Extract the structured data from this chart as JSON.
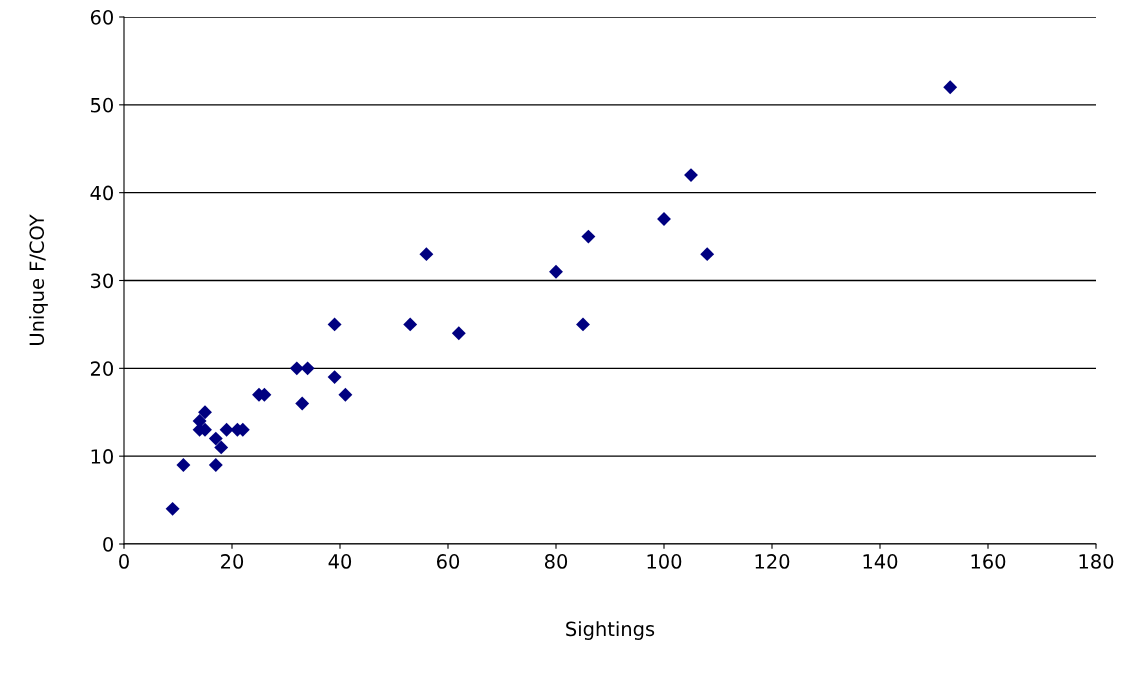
{
  "chart_data": {
    "type": "scatter",
    "xlabel": "Sightings",
    "ylabel": "Unique F/COY",
    "x": [
      9,
      11,
      14,
      14,
      15,
      15,
      17,
      17,
      18,
      19,
      21,
      22,
      25,
      26,
      32,
      34,
      33,
      39,
      39,
      41,
      53,
      56,
      62,
      80,
      85,
      86,
      100,
      105,
      108,
      153
    ],
    "values": [
      4,
      9,
      13,
      14,
      15,
      13,
      12,
      9,
      11,
      13,
      13,
      13,
      17,
      17,
      20,
      20,
      16,
      25,
      19,
      17,
      25,
      33,
      24,
      31,
      25,
      35,
      37,
      42,
      33,
      52
    ],
    "color": "#000080",
    "marker": "diamond",
    "xlim": [
      0,
      180
    ],
    "xticks": [
      0,
      20,
      40,
      60,
      80,
      100,
      120,
      140,
      160,
      180
    ],
    "ylim": [
      0,
      60
    ],
    "yticks": [
      0,
      10,
      20,
      30,
      40,
      50,
      60
    ],
    "grid": "y"
  }
}
